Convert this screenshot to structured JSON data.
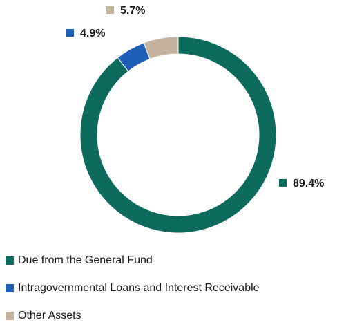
{
  "chart_data": {
    "type": "pie",
    "subtype": "donut",
    "title": "",
    "categories": [
      "Due from the General Fund",
      "Intragovernmental Loans and Interest Receivable",
      "Other Assets"
    ],
    "values": [
      89.4,
      4.9,
      5.7
    ],
    "value_labels": [
      "89.4%",
      "4.9%",
      "5.7%"
    ],
    "colors": [
      "#0d6b5e",
      "#1f5fb8",
      "#c4b29e"
    ],
    "legend_position": "bottom-left",
    "start_angle": "12 o'clock",
    "direction": "clockwise"
  },
  "legend": {
    "items": [
      {
        "label": "Due from the General Fund",
        "color": "#0d6b5e"
      },
      {
        "label": "Intragovernmental Loans and Interest Receivable",
        "color": "#1f5fb8"
      },
      {
        "label": "Other Assets",
        "color": "#c4b29e"
      }
    ]
  }
}
